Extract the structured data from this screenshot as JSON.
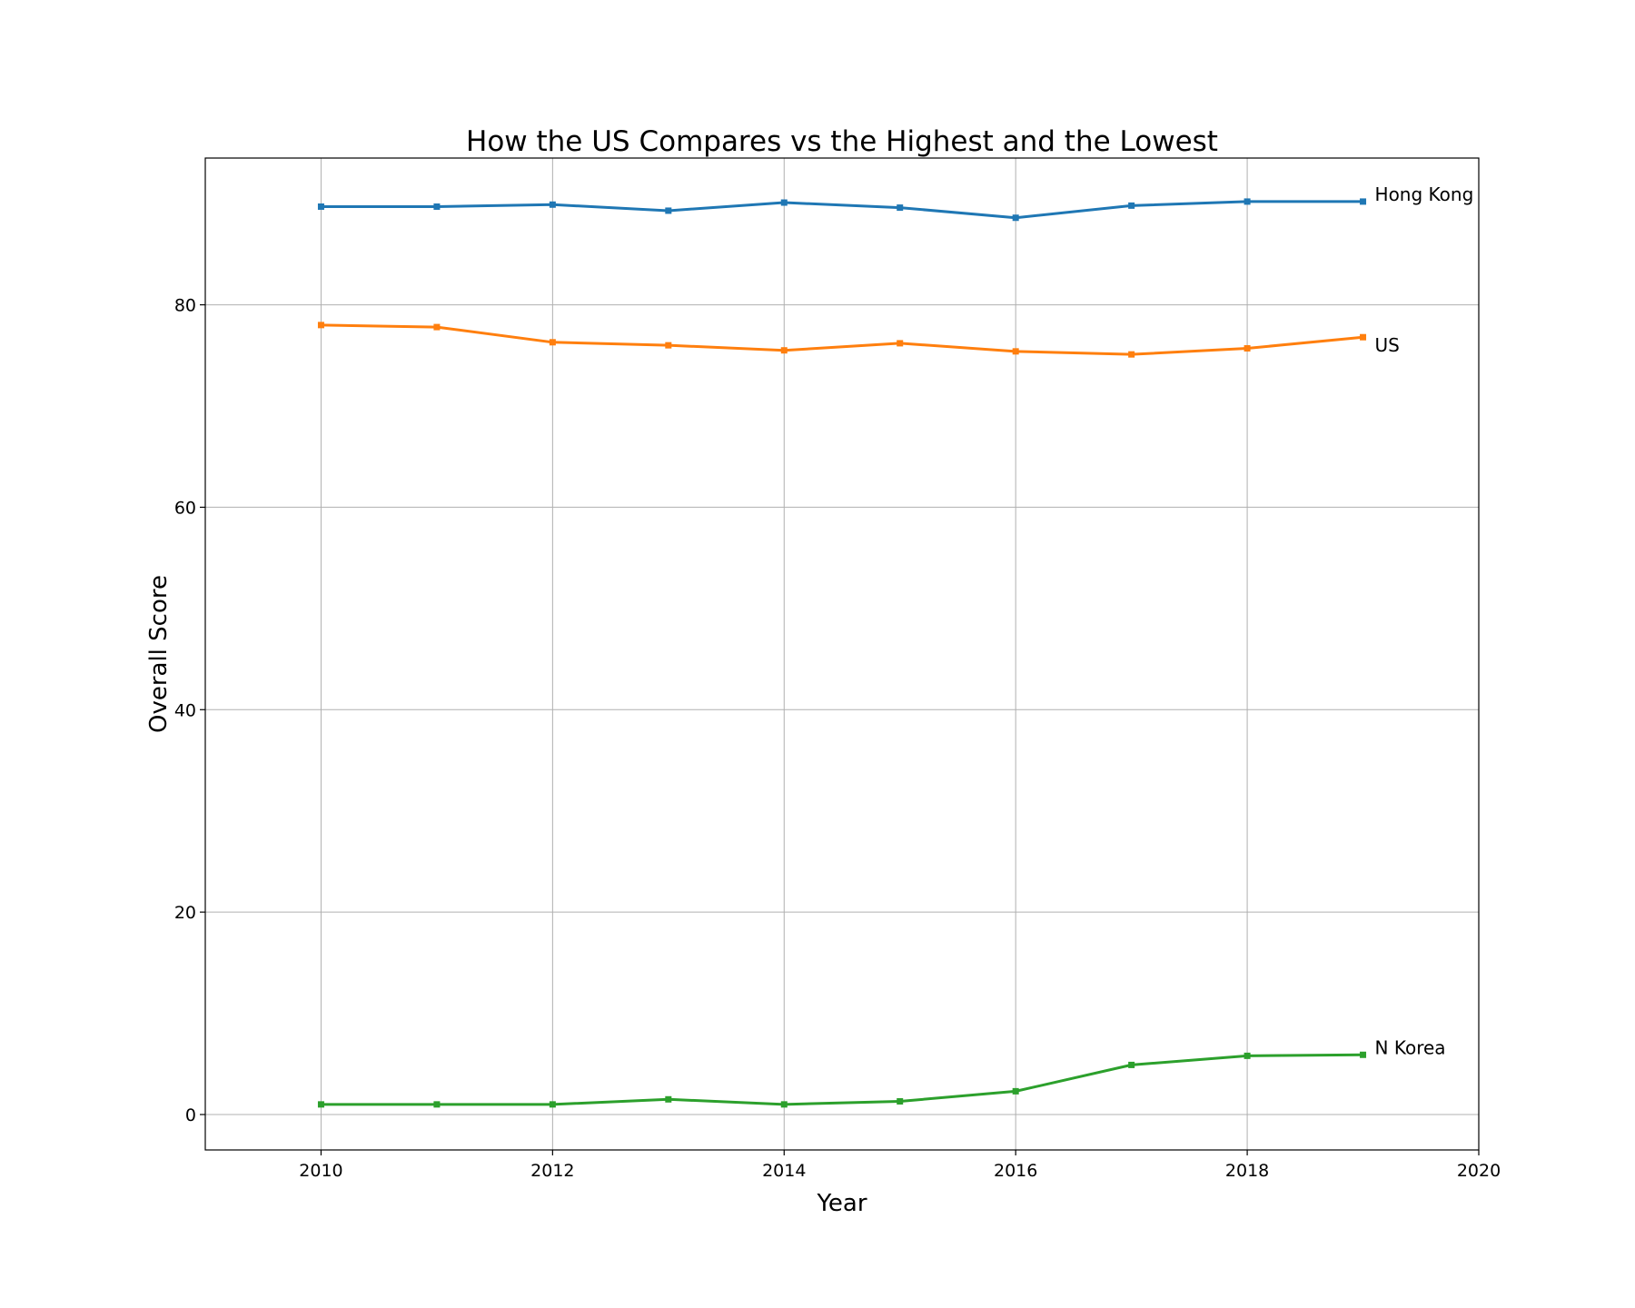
{
  "chart_data": {
    "type": "line",
    "title": "How the US Compares vs the Highest and the Lowest",
    "xlabel": "Year",
    "ylabel": "Overall Score",
    "xlim": [
      2009,
      2020
    ],
    "ylim": [
      -3.5,
      94.5
    ],
    "xticks": [
      2010,
      2012,
      2014,
      2016,
      2018,
      2020
    ],
    "yticks": [
      0,
      20,
      40,
      60,
      80
    ],
    "grid": true,
    "legend": "none",
    "marker": "square",
    "x": [
      2010,
      2011,
      2012,
      2013,
      2014,
      2015,
      2016,
      2017,
      2018,
      2019
    ],
    "series": [
      {
        "name": "Hong Kong",
        "color": "#1f77b4",
        "values": [
          89.7,
          89.7,
          89.9,
          89.3,
          90.1,
          89.6,
          88.6,
          89.8,
          90.2,
          90.2
        ]
      },
      {
        "name": "US",
        "color": "#ff7f0e",
        "values": [
          78.0,
          77.8,
          76.3,
          76.0,
          75.5,
          76.2,
          75.4,
          75.1,
          75.7,
          76.8
        ]
      },
      {
        "name": "N Korea",
        "color": "#2ca02c",
        "values": [
          1.0,
          1.0,
          1.0,
          1.5,
          1.0,
          1.3,
          2.3,
          4.9,
          5.8,
          5.9
        ]
      }
    ]
  }
}
